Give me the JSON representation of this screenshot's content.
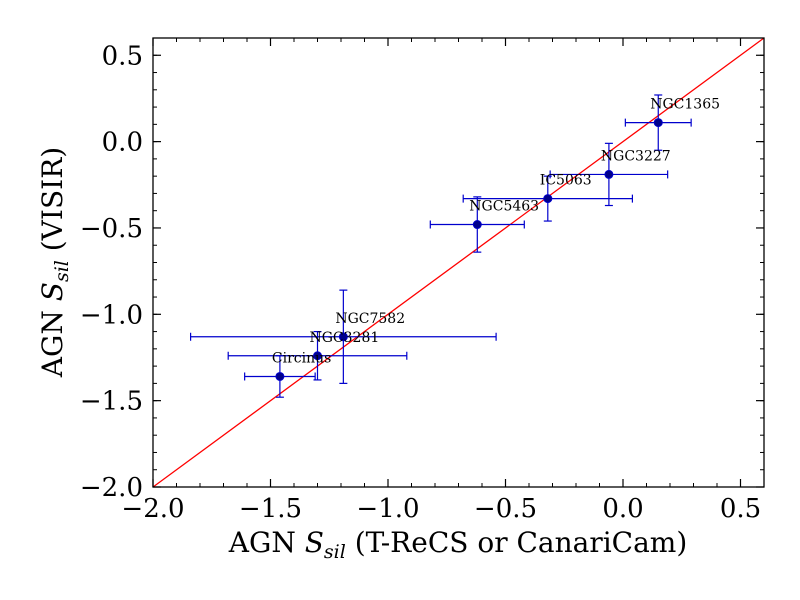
{
  "chart_data": {
    "type": "scatter",
    "title": "",
    "xlabel": {
      "prefix": "AGN ",
      "symbol": "S",
      "subscript": "sil",
      "suffix": " (T-ReCS or CanariCam)"
    },
    "ylabel": {
      "prefix": "AGN ",
      "symbol": "S",
      "subscript": "sil",
      "suffix": " (VISIR)"
    },
    "xlim": [
      -2.0,
      0.6
    ],
    "ylim": [
      -2.0,
      0.6
    ],
    "xticks": [
      -2.0,
      -1.5,
      -1.0,
      -0.5,
      0.0,
      0.5
    ],
    "yticks": [
      -2.0,
      -1.5,
      -1.0,
      -0.5,
      0.0,
      0.5
    ],
    "xtick_labels": [
      "−2.0",
      "−1.5",
      "−1.0",
      "−0.5",
      "0.0",
      "0.5"
    ],
    "ytick_labels": [
      "−2.0",
      "−1.5",
      "−1.0",
      "−0.5",
      "0.0",
      "0.5"
    ],
    "reference_line": {
      "kind": "one-to-one",
      "color": "#ff0000"
    },
    "marker_color": "#00008b",
    "errorbar_color": "#0000cd",
    "points": [
      {
        "name": "Circinus",
        "x": -1.46,
        "y": -1.36,
        "xerr": 0.15,
        "yerr": 0.12
      },
      {
        "name": "NGC3281",
        "x": -1.3,
        "y": -1.24,
        "xerr": 0.38,
        "yerr": 0.14
      },
      {
        "name": "NGC7582",
        "x": -1.19,
        "y": -1.13,
        "xerr": 0.65,
        "yerr": 0.27
      },
      {
        "name": "NGC5463",
        "x": -0.62,
        "y": -0.48,
        "xerr": 0.2,
        "yerr": 0.16
      },
      {
        "name": "IC5063",
        "x": -0.32,
        "y": -0.33,
        "xerr": 0.36,
        "yerr": 0.13
      },
      {
        "name": "NGC3227",
        "x": -0.06,
        "y": -0.19,
        "xerr": 0.25,
        "yerr": 0.18
      },
      {
        "name": "NGC1365",
        "x": 0.15,
        "y": 0.11,
        "xerr": 0.14,
        "yerr": 0.16
      }
    ]
  }
}
